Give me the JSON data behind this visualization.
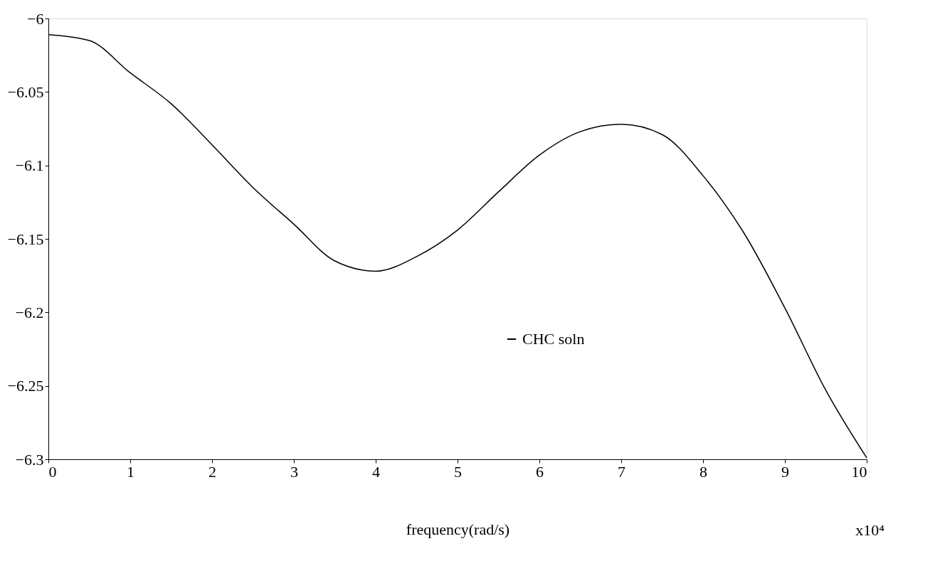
{
  "chart_data": {
    "type": "line",
    "xlabel": "frequency(rad/s)",
    "annotations": [
      "x10⁴"
    ],
    "x": [
      0,
      0.5,
      1,
      1.5,
      2,
      2.5,
      3,
      3.5,
      4,
      4.5,
      5,
      5.5,
      6,
      6.5,
      7,
      7.5,
      8,
      8.5,
      9,
      9.5,
      10
    ],
    "series": [
      {
        "name": "CHC soln",
        "color": "#000000",
        "values": [
          -6.011,
          -6.015,
          -6.037,
          -6.058,
          -6.086,
          -6.115,
          -6.14,
          -6.165,
          -6.172,
          -6.162,
          -6.144,
          -6.118,
          -6.093,
          -6.077,
          -6.072,
          -6.079,
          -6.107,
          -6.146,
          -6.197,
          -6.253,
          -6.299
        ]
      }
    ],
    "xlim": [
      0,
      10
    ],
    "xticks": [
      0,
      1,
      2,
      3,
      4,
      5,
      6,
      7,
      8,
      9,
      10
    ],
    "ylim": [
      -6.3,
      -6
    ],
    "yticks": [
      -6.3,
      -6.25,
      -6.2,
      -6.15,
      -6.1,
      -6.05,
      -6
    ],
    "grid": false,
    "legend": "right",
    "marker": "none",
    "line_style": "solid"
  }
}
